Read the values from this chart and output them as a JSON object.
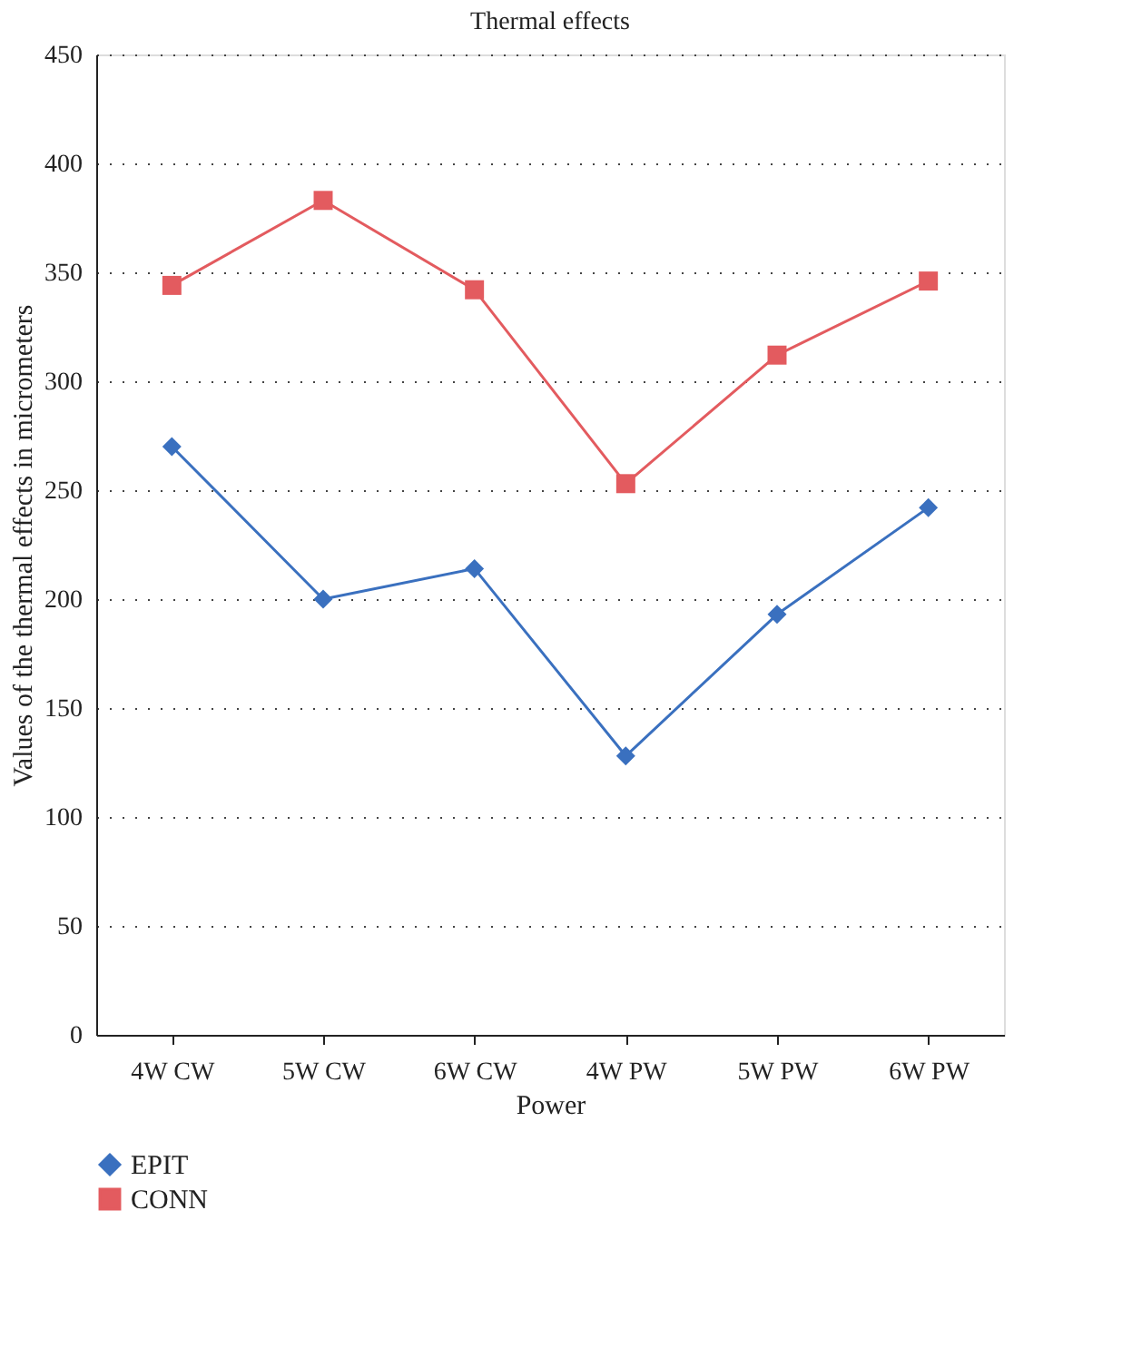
{
  "chart_data": {
    "type": "line",
    "title": "Thermal effects",
    "xlabel": "Power",
    "ylabel": "Values of the thermal effects in micrometers",
    "categories": [
      "4W CW",
      "5W CW",
      "6W CW",
      "4W PW",
      "5W PW",
      "6W PW"
    ],
    "series": [
      {
        "name": "EPIT",
        "color": "#3a70bf",
        "marker": "diamond",
        "values": [
          270,
          200,
          214,
          128,
          193,
          242
        ]
      },
      {
        "name": "CONN",
        "color": "#e35b5f",
        "marker": "square",
        "values": [
          344,
          383,
          342,
          253,
          312,
          346
        ]
      }
    ],
    "ylim": [
      0,
      450
    ],
    "yticks": [
      0,
      50,
      100,
      150,
      200,
      250,
      300,
      350,
      400,
      450
    ],
    "grid": "y",
    "legend": "bottom left",
    "line_style": "solid"
  }
}
